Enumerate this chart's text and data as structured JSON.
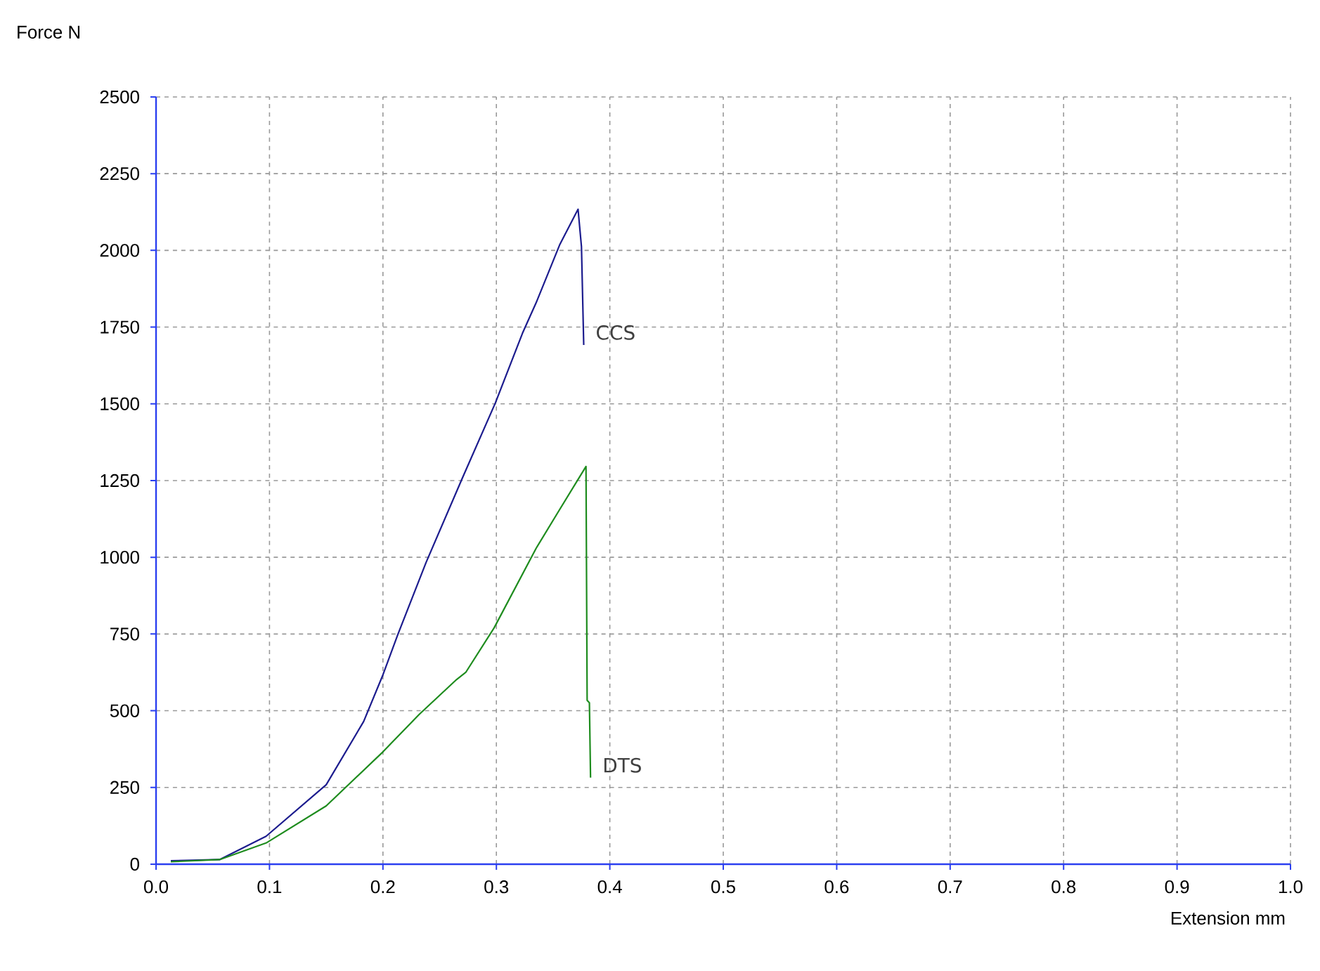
{
  "chart_data": {
    "type": "line",
    "xlabel": "Extension mm",
    "ylabel": "Force N",
    "xlim": [
      0,
      1
    ],
    "ylim": [
      0,
      2500
    ],
    "xticks": [
      {
        "value": 0,
        "label": "0.0"
      },
      0.1,
      0.2,
      0.3,
      0.4,
      0.5,
      0.6,
      0.7,
      0.8,
      0.9,
      {
        "value": 1,
        "label": "1.0"
      }
    ],
    "yticks": [
      0,
      250,
      500,
      750,
      1000,
      1250,
      1500,
      1750,
      2000,
      2250,
      2500
    ],
    "grid": true,
    "marker": "none",
    "line_style": "solid",
    "series": [
      {
        "name": "CCS",
        "color": "#1c1c8e",
        "x": [
          0.013,
          0.056,
          0.097,
          0.15,
          0.183,
          0.2,
          0.213,
          0.238,
          0.27,
          0.299,
          0.323,
          0.335,
          0.356,
          0.372,
          0.375,
          0.377
        ],
        "values": [
          11,
          15,
          91,
          259,
          465,
          617,
          747,
          983,
          1258,
          1502,
          1730,
          1829,
          2020,
          2134,
          2012,
          1692
        ]
      },
      {
        "name": "DTS",
        "color": "#1e8c1e",
        "x": [
          0.013,
          0.056,
          0.097,
          0.15,
          0.2,
          0.232,
          0.265,
          0.273,
          0.298,
          0.335,
          0.355,
          0.379,
          0.38,
          0.382,
          0.383
        ],
        "values": [
          8,
          15,
          69,
          190,
          366,
          488,
          602,
          625,
          770,
          1029,
          1151,
          1296,
          534,
          526,
          282
        ]
      }
    ]
  }
}
